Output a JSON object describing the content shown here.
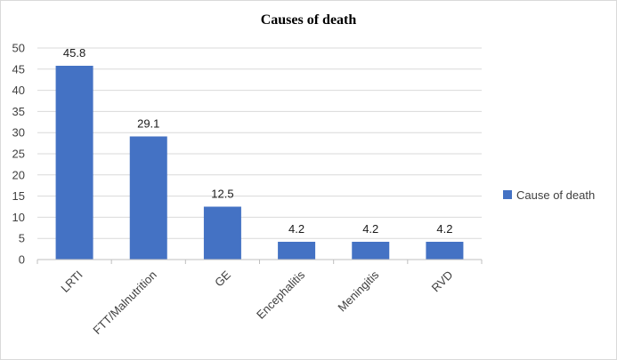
{
  "chart_data": {
    "type": "bar",
    "title": "Causes of death",
    "categories": [
      "LRTI",
      "FTT/Malnutrition",
      "GE",
      "Encephalitis",
      "Meningitis",
      "RVD"
    ],
    "series": [
      {
        "name": "Cause of death",
        "values": [
          45.8,
          29.1,
          12.5,
          4.2,
          4.2,
          4.2
        ],
        "color": "#4472c4"
      }
    ],
    "data_labels": [
      "45.8",
      "29.1",
      "12.5",
      "4.2",
      "4.2",
      "4.2"
    ],
    "ylim": [
      0,
      50
    ],
    "yticks": [
      0,
      5,
      10,
      15,
      20,
      25,
      30,
      35,
      40,
      45,
      50
    ],
    "grid": true,
    "legend_position": "right"
  }
}
